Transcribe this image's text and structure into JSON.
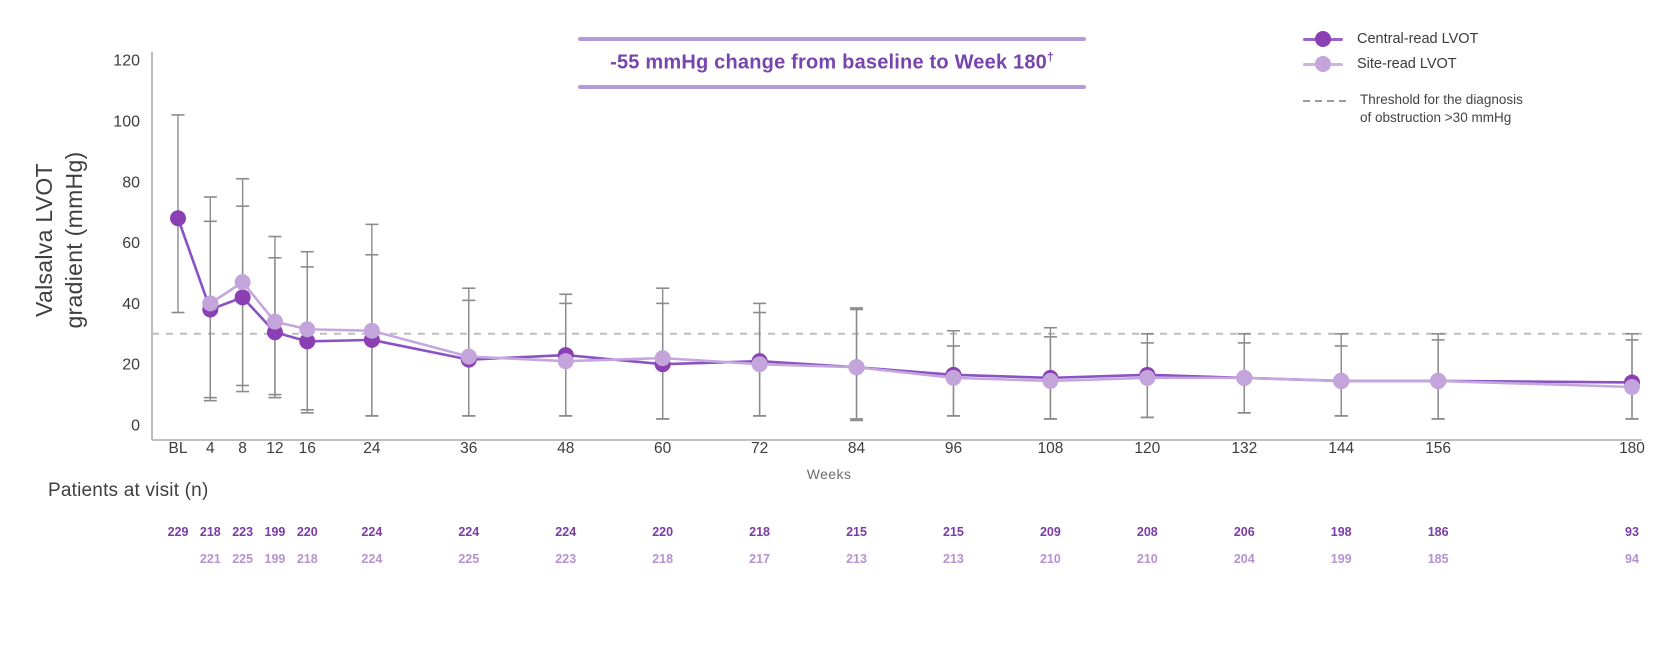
{
  "chart_data": {
    "type": "line",
    "title": "",
    "xlabel": "Weeks",
    "ylabel": "Valsalva LVOT gradient (mmHg)",
    "ylabel_line1": "Valsalva LVOT",
    "ylabel_line2": "gradient (mmHg)",
    "patients_label": "Patients at visit (n)",
    "ylim": [
      0,
      120
    ],
    "yticks": [
      0,
      20,
      40,
      60,
      80,
      100,
      120
    ],
    "categories": [
      "BL",
      "4",
      "8",
      "12",
      "16",
      "24",
      "36",
      "48",
      "60",
      "72",
      "84",
      "96",
      "108",
      "120",
      "132",
      "144",
      "156",
      "180"
    ],
    "week_values": [
      0,
      4,
      8,
      12,
      16,
      24,
      36,
      48,
      60,
      72,
      84,
      96,
      108,
      120,
      132,
      144,
      156,
      180
    ],
    "grid": false,
    "legend_position": "top-right",
    "annotation": {
      "text": "-55 mmHg change from baseline to Week 180",
      "sup": "†"
    },
    "threshold": {
      "value": 30,
      "legend_line1": "Threshold for the diagnosis",
      "legend_line2": "of obstruction >30 mmHg"
    },
    "series": [
      {
        "name": "Central-read LVOT",
        "dot_color": "#8a3fb3",
        "line_color": "#8a52c2",
        "values": [
          68,
          38,
          42,
          30.5,
          27.5,
          28,
          21.5,
          23,
          20,
          21,
          19,
          16.5,
          15.5,
          16.5,
          15.5,
          14.5,
          14.5,
          14
        ],
        "err_lo": [
          37,
          8,
          11,
          9,
          4,
          3,
          3,
          3,
          2,
          3,
          2,
          3,
          2,
          2.5,
          4,
          3,
          2,
          2
        ],
        "err_hi": [
          102,
          67,
          72,
          55,
          52,
          56,
          41,
          43,
          40,
          40,
          38,
          31,
          32,
          30,
          30,
          30,
          30,
          30
        ],
        "patients": [
          229,
          218,
          223,
          199,
          220,
          224,
          224,
          224,
          220,
          218,
          215,
          215,
          209,
          208,
          206,
          198,
          186,
          93
        ]
      },
      {
        "name": "Site-read LVOT",
        "dot_color": "#c3a4db",
        "line_color": "#c4a7dd",
        "values": [
          null,
          40,
          47,
          34,
          31.5,
          31,
          22.5,
          21,
          22,
          20,
          19,
          15.5,
          14.5,
          15.5,
          15.5,
          14.5,
          14.5,
          12.5
        ],
        "err_lo": [
          null,
          9,
          13,
          10,
          5,
          3,
          3,
          3,
          2,
          3,
          1.5,
          3,
          2,
          2.5,
          4,
          3,
          2,
          2
        ],
        "err_hi": [
          null,
          75,
          81,
          62,
          57,
          66,
          45,
          40,
          45,
          37,
          38.5,
          26,
          29,
          27,
          27,
          26,
          28,
          28
        ],
        "patients": [
          null,
          221,
          225,
          199,
          218,
          224,
          225,
          223,
          218,
          217,
          213,
          213,
          210,
          210,
          204,
          199,
          185,
          94
        ]
      }
    ],
    "colors": {
      "error_bar": "#8b8b8b",
      "threshold_dash": "#bdbdbd",
      "axis": "#ababab",
      "tick_text": "#3d3d3d",
      "banner_text": "#7745ad",
      "banner_line": "#b49bd7",
      "patients_central": "#7b3ca8",
      "patients_site": "#b493cf"
    }
  }
}
